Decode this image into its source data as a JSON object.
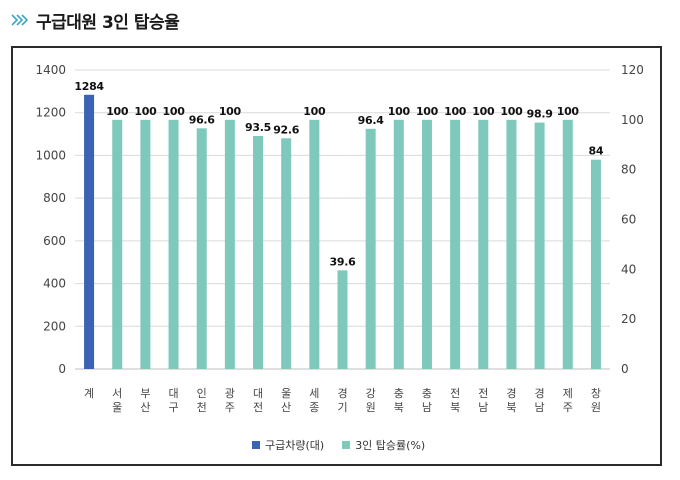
{
  "header": {
    "title": "구급대원 3인 탑승율",
    "icon": "double-chevron-right-icon"
  },
  "colors": {
    "accent": "#3aa6c7",
    "primary_bar": "#3a63b5",
    "secondary_bar": "#7ec9bb"
  },
  "chart_data": {
    "type": "bar",
    "title": "",
    "categories": [
      "계",
      "서울",
      "부산",
      "대구",
      "인천",
      "광주",
      "대전",
      "울산",
      "세종",
      "경기",
      "강원",
      "충북",
      "충남",
      "전북",
      "전남",
      "경북",
      "경남",
      "제주",
      "창원"
    ],
    "series": [
      {
        "name": "구급차량(대)",
        "axis": "left",
        "values": [
          1284,
          null,
          null,
          null,
          null,
          null,
          null,
          null,
          null,
          null,
          null,
          null,
          null,
          null,
          null,
          null,
          null,
          null,
          null
        ],
        "data_labels": [
          "1284"
        ]
      },
      {
        "name": "3인 탑승률(%)",
        "axis": "right",
        "values": [
          null,
          100,
          100,
          100,
          96.6,
          100,
          93.5,
          92.6,
          100,
          39.6,
          96.4,
          100,
          100,
          100,
          100,
          100,
          98.9,
          100,
          84
        ],
        "data_labels": [
          "",
          "100",
          "100",
          "100",
          "96.6",
          "100",
          "93.5",
          "92.6",
          "100",
          "39.6",
          "96.4",
          "100",
          "100",
          "100",
          "100",
          "100",
          "98.9",
          "100",
          "84"
        ]
      }
    ],
    "y_left": {
      "min": 0,
      "max": 1400,
      "ticks": [
        "0",
        "200",
        "400",
        "600",
        "800",
        "1000",
        "1200",
        "1400"
      ]
    },
    "y_right": {
      "min": 0,
      "max": 120,
      "ticks": [
        "0",
        "20",
        "40",
        "60",
        "80",
        "100",
        "120"
      ]
    },
    "grid": true,
    "legend": {
      "position": "bottom",
      "items": [
        "구급차량(대)",
        "3인 탑승률(%)"
      ]
    }
  }
}
